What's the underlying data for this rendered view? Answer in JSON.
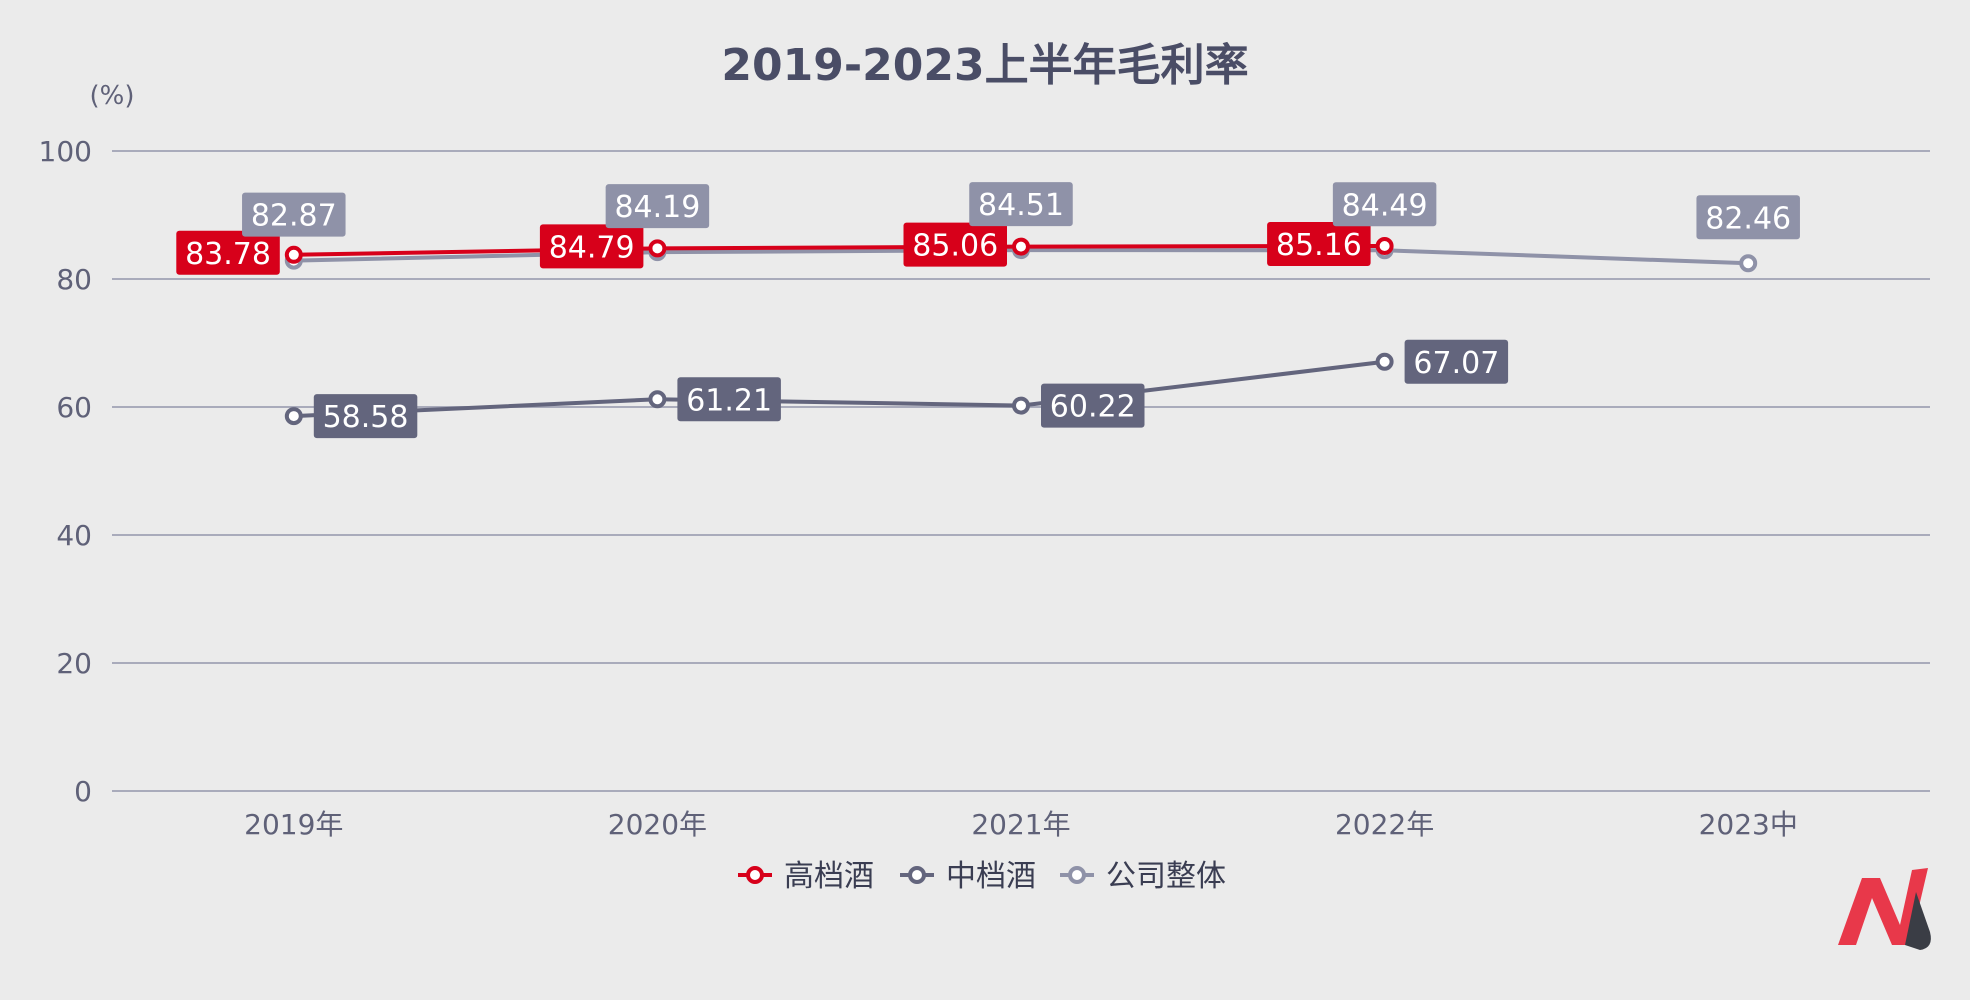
{
  "chart_data": {
    "type": "line",
    "title": "2019-2023上半年毛利率",
    "ylabel": "(%)",
    "categories": [
      "2019年",
      "2020年",
      "2021年",
      "2022年",
      "2023中"
    ],
    "ylim": [
      0,
      100
    ],
    "yticks": [
      0,
      20,
      40,
      60,
      80,
      100
    ],
    "grid": true,
    "legend_position": "bottom",
    "series": [
      {
        "name": "高档酒",
        "color": "#d7001a",
        "values": [
          83.78,
          84.79,
          85.06,
          85.16,
          null
        ],
        "label_side": "left"
      },
      {
        "name": "中档酒",
        "color": "#63657d",
        "values": [
          58.58,
          61.21,
          60.22,
          67.07,
          null
        ],
        "label_side": "right"
      },
      {
        "name": "公司整体",
        "color": "#8f92a8",
        "values": [
          82.87,
          84.19,
          84.51,
          84.49,
          82.46
        ],
        "label_side": "top"
      }
    ]
  },
  "logo": {
    "name": "brand-logo",
    "colors": [
      "#e8384a",
      "#3a3d45"
    ]
  }
}
